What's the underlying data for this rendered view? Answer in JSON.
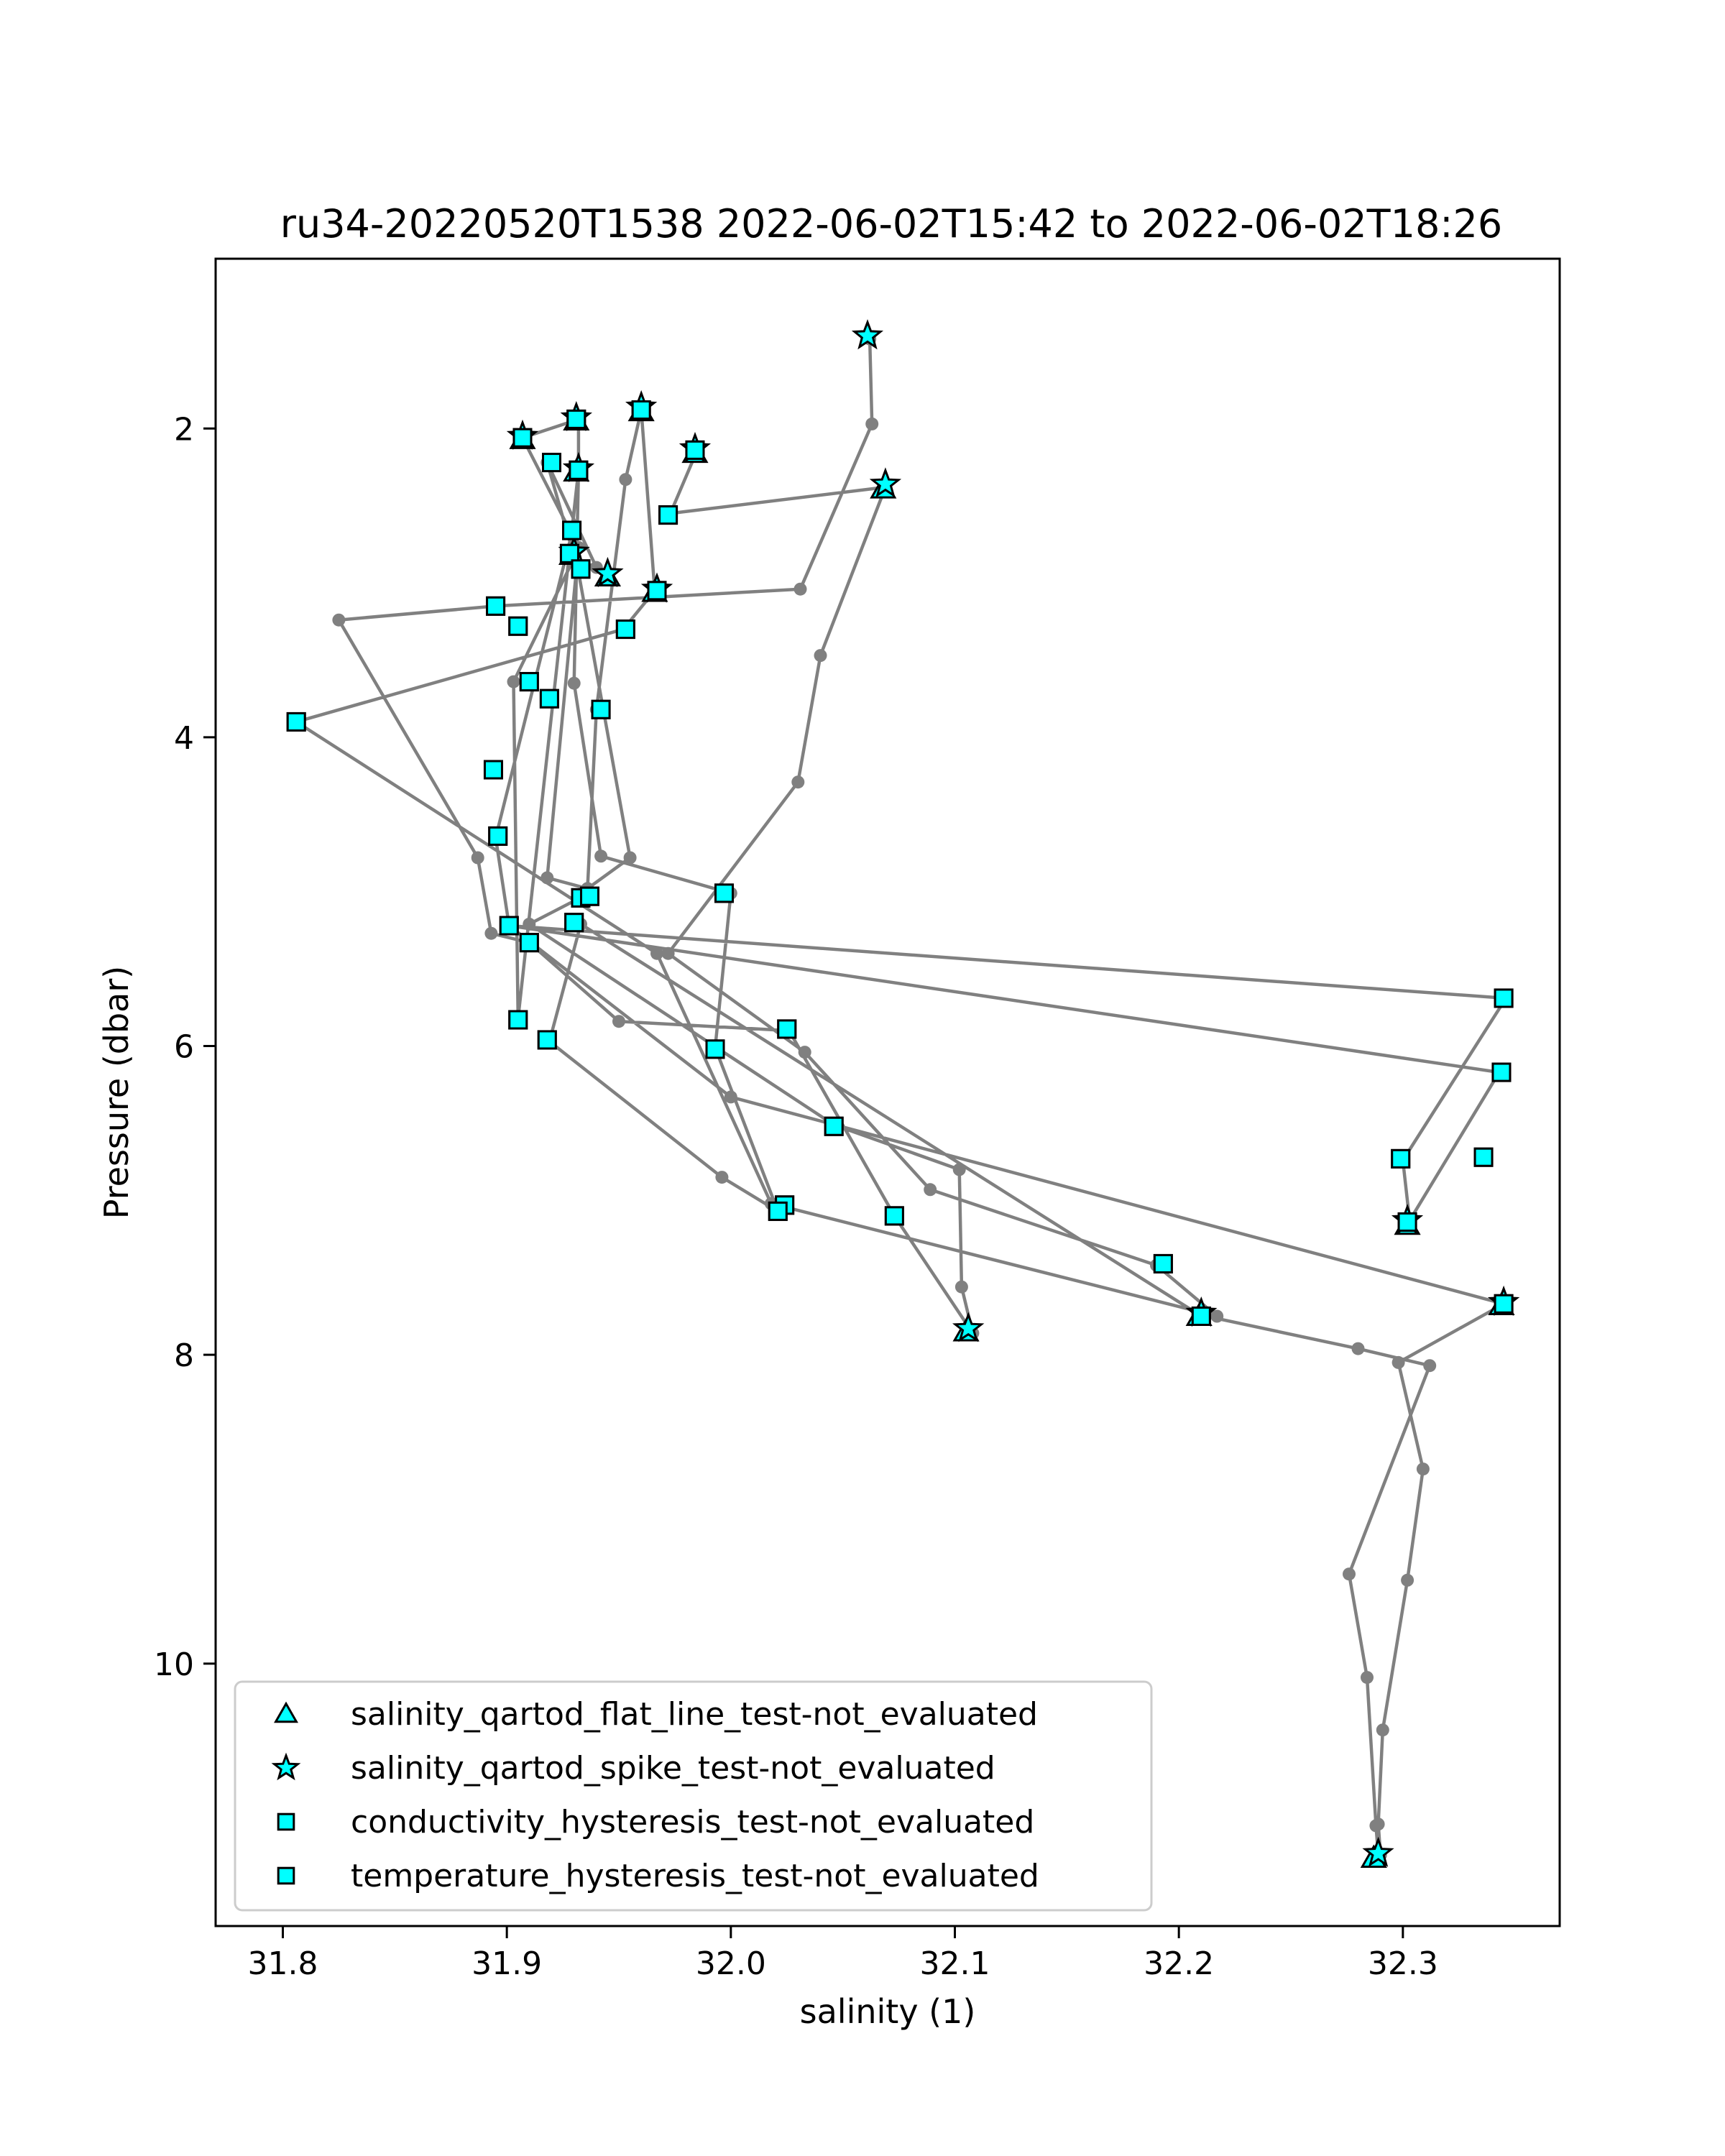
{
  "chart_data": {
    "type": "scatter",
    "title": "ru34-20220520T1538 2022-06-02T15:42 to 2022-06-02T18:26",
    "xlabel": "salinity (1)",
    "ylabel": "Pressure (dbar)",
    "xlim": [
      31.77,
      32.37
    ],
    "ylim": [
      11.7,
      0.9
    ],
    "y_inverted": true,
    "xticks": [
      31.8,
      31.9,
      32.0,
      32.1,
      32.2,
      32.3
    ],
    "xtick_labels": [
      "31.8",
      "31.9",
      "32.0",
      "32.1",
      "32.2",
      "32.3"
    ],
    "yticks": [
      2,
      4,
      6,
      8,
      10
    ],
    "ytick_labels": [
      "2",
      "4",
      "6",
      "8",
      "10"
    ],
    "grid": false,
    "legend_position": "lower-left",
    "colors": {
      "line": "#808080",
      "marker_fill": "#00ffff",
      "marker_edge": "#000000"
    },
    "trace": [
      [
        32.062,
        1.42
      ],
      [
        32.063,
        1.97
      ],
      [
        32.031,
        3.04
      ],
      [
        31.895,
        3.15
      ],
      [
        31.825,
        3.24
      ],
      [
        31.887,
        4.78
      ],
      [
        31.893,
        5.27
      ],
      [
        31.91,
        5.33
      ],
      [
        31.95,
        5.84
      ],
      [
        32.026,
        5.9
      ],
      [
        32.073,
        7.1
      ],
      [
        32.108,
        7.86
      ],
      [
        32.103,
        7.56
      ],
      [
        32.102,
        6.8
      ],
      [
        32.046,
        6.51
      ],
      [
        31.91,
        5.21
      ],
      [
        31.934,
        5.03
      ],
      [
        31.936,
        4.98
      ],
      [
        31.955,
        4.78
      ],
      [
        31.932,
        2.93
      ],
      [
        31.918,
        2.22
      ],
      [
        31.94,
        2.9
      ],
      [
        31.93,
        2.84
      ],
      [
        31.903,
        3.64
      ],
      [
        31.905,
        5.82
      ],
      [
        31.932,
        2.27
      ],
      [
        31.929,
        2.68
      ],
      [
        31.895,
        4.65
      ],
      [
        31.901,
        5.22
      ],
      [
        32.346,
        5.69
      ],
      [
        32.3,
        6.74
      ],
      [
        32.303,
        7.13
      ],
      [
        32.343,
        6.17
      ],
      [
        31.901,
        5.22
      ],
      [
        32.0,
        6.33
      ],
      [
        32.345,
        7.67
      ],
      [
        32.298,
        8.05
      ],
      [
        32.309,
        8.74
      ],
      [
        32.302,
        9.46
      ],
      [
        32.291,
        10.43
      ],
      [
        32.289,
        11.04
      ],
      [
        32.29,
        11.24
      ],
      [
        32.289,
        11.24
      ],
      [
        32.288,
        11.05
      ],
      [
        32.284,
        10.09
      ],
      [
        32.276,
        9.42
      ],
      [
        32.312,
        8.07
      ],
      [
        32.28,
        7.96
      ],
      [
        32.209,
        7.74
      ],
      [
        31.933,
        5.21
      ],
      [
        31.919,
        5.97
      ],
      [
        31.996,
        6.85
      ],
      [
        32.021,
        7.07
      ],
      [
        31.993,
        6.01
      ],
      [
        32.0,
        5.01
      ],
      [
        31.942,
        4.77
      ],
      [
        31.93,
        3.65
      ],
      [
        31.932,
        2.27
      ],
      [
        31.932,
        1.94
      ],
      [
        31.907,
        2.06
      ],
      [
        31.932,
        2.77
      ],
      [
        31.918,
        4.91
      ],
      [
        31.936,
        4.98
      ],
      [
        31.94,
        3.82
      ],
      [
        31.953,
        2.33
      ],
      [
        31.96,
        1.88
      ],
      [
        31.966,
        3.05
      ],
      [
        31.952,
        3.3
      ],
      [
        31.806,
        3.9
      ],
      [
        31.967,
        5.4
      ],
      [
        32.018,
        7.02
      ],
      [
        32.217,
        7.75
      ],
      [
        32.19,
        7.42
      ],
      [
        32.089,
        6.93
      ],
      [
        32.033,
        6.04
      ],
      [
        31.972,
        5.4
      ],
      [
        32.03,
        4.29
      ],
      [
        32.04,
        3.47
      ],
      [
        32.069,
        2.38
      ],
      [
        31.973,
        2.55
      ],
      [
        31.985,
        2.14
      ]
    ],
    "series": [
      {
        "name": "salinity_qartod_flat_line_test-not_evaluated",
        "marker": "triangle",
        "points": [
          [
            31.907,
            2.07
          ],
          [
            31.931,
            1.95
          ],
          [
            31.931,
            2.28
          ],
          [
            31.96,
            1.89
          ],
          [
            31.984,
            2.16
          ],
          [
            32.068,
            2.39
          ],
          [
            31.929,
            2.82
          ],
          [
            31.945,
            2.96
          ],
          [
            31.966,
            3.06
          ],
          [
            32.302,
            7.16
          ],
          [
            32.344,
            7.68
          ],
          [
            32.209,
            7.75
          ],
          [
            32.105,
            7.85
          ],
          [
            32.287,
            11.26
          ]
        ]
      },
      {
        "name": "salinity_qartod_spike_test-not_evaluated",
        "marker": "star",
        "points": [
          [
            32.061,
            1.4
          ],
          [
            31.907,
            2.05
          ],
          [
            31.931,
            1.93
          ],
          [
            31.932,
            2.26
          ],
          [
            31.96,
            1.86
          ],
          [
            31.984,
            2.13
          ],
          [
            32.069,
            2.36
          ],
          [
            31.93,
            2.8
          ],
          [
            31.945,
            2.94
          ],
          [
            31.967,
            3.04
          ],
          [
            32.302,
            7.13
          ],
          [
            32.345,
            7.66
          ],
          [
            32.21,
            7.73
          ],
          [
            32.106,
            7.83
          ],
          [
            32.289,
            11.23
          ]
        ]
      },
      {
        "name": "conductivity_hysteresis_test-not_evaluated",
        "marker": "square",
        "points": [
          [
            31.907,
            2.06
          ],
          [
            31.931,
            1.94
          ],
          [
            31.932,
            2.27
          ],
          [
            31.96,
            1.88
          ],
          [
            31.984,
            2.14
          ],
          [
            31.92,
            2.22
          ],
          [
            31.929,
            2.66
          ],
          [
            31.928,
            2.81
          ],
          [
            31.933,
            2.91
          ],
          [
            31.967,
            3.05
          ],
          [
            31.972,
            2.56
          ],
          [
            31.895,
            3.15
          ],
          [
            31.905,
            3.28
          ],
          [
            31.953,
            3.3
          ],
          [
            31.91,
            3.64
          ],
          [
            31.919,
            3.75
          ],
          [
            31.942,
            3.82
          ],
          [
            31.806,
            3.9
          ],
          [
            31.894,
            4.21
          ],
          [
            31.896,
            4.64
          ],
          [
            31.997,
            5.01
          ],
          [
            31.933,
            5.04
          ],
          [
            31.937,
            5.03
          ],
          [
            31.901,
            5.22
          ],
          [
            31.93,
            5.2
          ],
          [
            31.91,
            5.33
          ],
          [
            31.905,
            5.83
          ],
          [
            31.918,
            5.96
          ],
          [
            32.025,
            5.89
          ],
          [
            31.993,
            6.02
          ],
          [
            32.046,
            6.52
          ],
          [
            32.024,
            7.03
          ],
          [
            32.021,
            7.07
          ],
          [
            32.073,
            7.1
          ],
          [
            32.193,
            7.41
          ],
          [
            32.21,
            7.75
          ],
          [
            32.345,
            5.69
          ],
          [
            32.344,
            6.17
          ],
          [
            32.299,
            6.73
          ],
          [
            32.336,
            6.72
          ],
          [
            32.302,
            7.14
          ],
          [
            32.345,
            7.67
          ]
        ]
      },
      {
        "name": "temperature_hysteresis_test-not_evaluated",
        "marker": "square",
        "points": [
          [
            31.907,
            2.06
          ],
          [
            31.931,
            1.94
          ],
          [
            31.932,
            2.27
          ],
          [
            31.96,
            1.88
          ],
          [
            31.984,
            2.14
          ],
          [
            31.92,
            2.22
          ],
          [
            31.929,
            2.66
          ],
          [
            31.928,
            2.81
          ],
          [
            31.933,
            2.91
          ],
          [
            31.967,
            3.05
          ],
          [
            31.972,
            2.56
          ],
          [
            31.895,
            3.15
          ],
          [
            31.905,
            3.28
          ],
          [
            31.953,
            3.3
          ],
          [
            31.91,
            3.64
          ],
          [
            31.919,
            3.75
          ],
          [
            31.942,
            3.82
          ],
          [
            31.806,
            3.9
          ],
          [
            31.894,
            4.21
          ],
          [
            31.896,
            4.64
          ],
          [
            31.997,
            5.01
          ],
          [
            31.933,
            5.04
          ],
          [
            31.937,
            5.03
          ],
          [
            31.901,
            5.22
          ],
          [
            31.93,
            5.2
          ],
          [
            31.91,
            5.33
          ],
          [
            31.905,
            5.83
          ],
          [
            31.918,
            5.96
          ],
          [
            32.025,
            5.89
          ],
          [
            31.993,
            6.02
          ],
          [
            32.046,
            6.52
          ],
          [
            32.024,
            7.03
          ],
          [
            32.021,
            7.07
          ],
          [
            32.073,
            7.1
          ],
          [
            32.193,
            7.41
          ],
          [
            32.21,
            7.75
          ],
          [
            32.345,
            5.69
          ],
          [
            32.344,
            6.17
          ],
          [
            32.299,
            6.73
          ],
          [
            32.336,
            6.72
          ],
          [
            32.302,
            7.14
          ],
          [
            32.345,
            7.67
          ]
        ]
      }
    ]
  }
}
